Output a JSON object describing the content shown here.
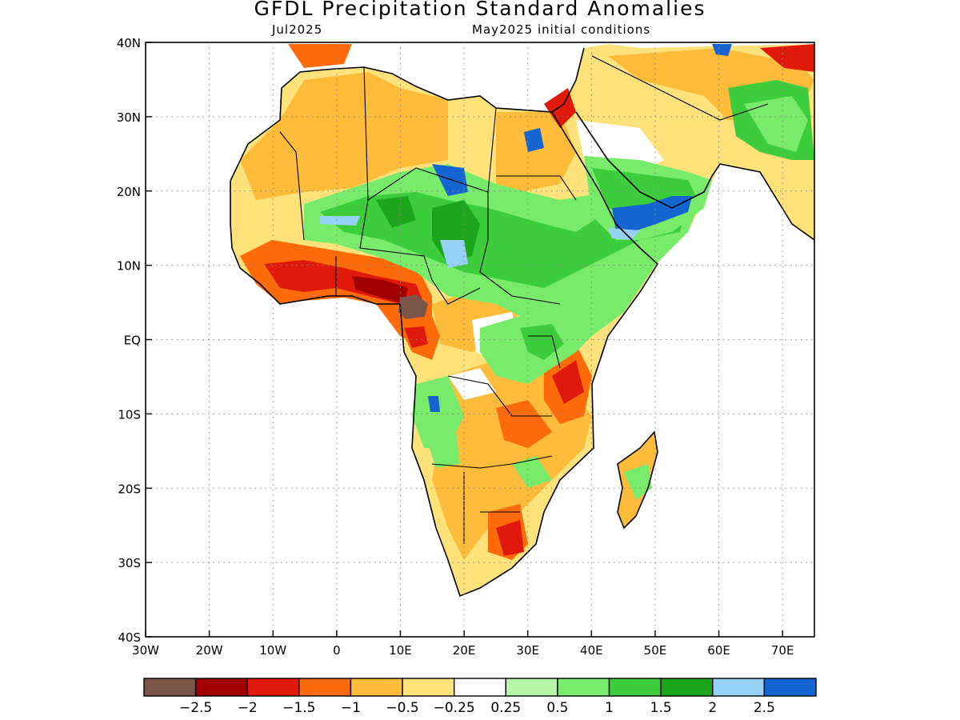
{
  "title": "GFDL Precipitation Standard Anomalies",
  "subtitle_left": "Jul2025",
  "subtitle_right": "May2025 initial conditions",
  "map": {
    "lon_range": [
      -30,
      75
    ],
    "lat_range": [
      -40,
      40
    ],
    "lat_ticks": [
      {
        "value": 40,
        "label": "40N"
      },
      {
        "value": 30,
        "label": "30N"
      },
      {
        "value": 20,
        "label": "20N"
      },
      {
        "value": 10,
        "label": "10N"
      },
      {
        "value": 0,
        "label": "EQ"
      },
      {
        "value": -10,
        "label": "10S"
      },
      {
        "value": -20,
        "label": "20S"
      },
      {
        "value": -30,
        "label": "30S"
      },
      {
        "value": -40,
        "label": "40S"
      }
    ],
    "lon_ticks": [
      {
        "value": -30,
        "label": "30W"
      },
      {
        "value": -20,
        "label": "20W"
      },
      {
        "value": -10,
        "label": "10W"
      },
      {
        "value": 0,
        "label": "0"
      },
      {
        "value": 10,
        "label": "10E"
      },
      {
        "value": 20,
        "label": "20E"
      },
      {
        "value": 30,
        "label": "30E"
      },
      {
        "value": 40,
        "label": "40E"
      },
      {
        "value": 50,
        "label": "50E"
      },
      {
        "value": 60,
        "label": "60E"
      },
      {
        "value": 70,
        "label": "70E"
      }
    ],
    "grid": "dotted"
  },
  "colorbar": {
    "colors": [
      "#7b5548",
      "#a00000",
      "#e01a0a",
      "#ff6a0a",
      "#ffbb3a",
      "#ffe27a",
      "#ffffff",
      "#b7f5a8",
      "#78eb6a",
      "#3ccc3c",
      "#1ea51e",
      "#96d2f5",
      "#1464d2"
    ],
    "labels": [
      "−2.5",
      "−2",
      "−1.5",
      "−1",
      "−0.5",
      "−0.25",
      "0.25",
      "0.5",
      "1",
      "1.5",
      "2",
      "2.5"
    ]
  }
}
